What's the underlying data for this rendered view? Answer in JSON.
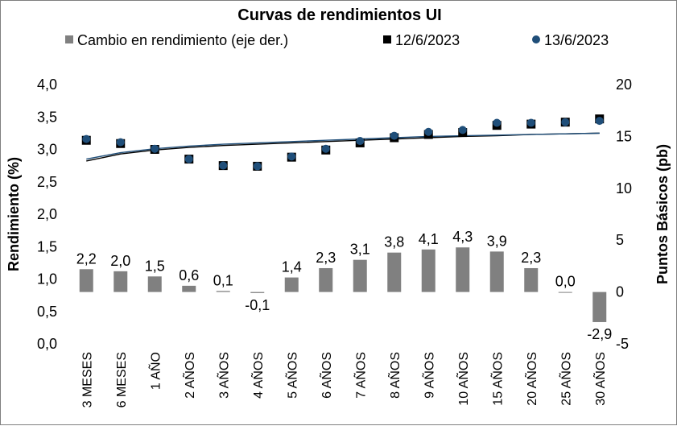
{
  "chart_data": {
    "type": "bar",
    "title": "Curvas de rendimientos UI",
    "ylabel": "Rendimiento (%)",
    "y2label": "Puntos Básicos (pb)",
    "ylim": [
      0,
      4
    ],
    "y2lim": [
      -5,
      20
    ],
    "yticks": [
      "0,0",
      "0,5",
      "1,0",
      "1,5",
      "2,0",
      "2,5",
      "3,0",
      "3,5",
      "4,0"
    ],
    "y2ticks": [
      "-5",
      "0",
      "5",
      "10",
      "15",
      "20"
    ],
    "legend_position": "top",
    "grid": false,
    "categories": [
      "3 MESES",
      "6 MESES",
      "1 AÑO",
      "2 AÑOS",
      "3 AÑOS",
      "4 AÑOS",
      "5 AÑOS",
      "6 AÑOS",
      "7 AÑOS",
      "8 AÑOS",
      "9 AÑOS",
      "10 AÑOS",
      "15 AÑOS",
      "20 AÑOS",
      "25 AÑOS",
      "30 AÑOS"
    ],
    "series": [
      {
        "name": "Cambio en rendimiento (eje der.)",
        "type": "bar",
        "axis": "right",
        "color": "#808080",
        "values": [
          2.2,
          2.0,
          1.5,
          0.6,
          0.1,
          -0.1,
          1.4,
          2.3,
          3.1,
          3.8,
          4.1,
          4.3,
          3.9,
          2.3,
          0.0,
          -2.9
        ],
        "labels": [
          "2,2",
          "2,0",
          "1,5",
          "0,6",
          "0,1",
          "-0,1",
          "1,4",
          "2,3",
          "3,1",
          "3,8",
          "4,1",
          "4,3",
          "3,9",
          "2,3",
          "0,0",
          "-2,9"
        ]
      },
      {
        "name": "12/6/2023",
        "type": "scatter",
        "axis": "left",
        "marker": "square",
        "color": "#000000",
        "values": [
          3.14,
          3.09,
          3.0,
          2.85,
          2.75,
          2.74,
          2.88,
          2.99,
          3.1,
          3.18,
          3.23,
          3.26,
          3.37,
          3.39,
          3.42,
          3.47
        ]
      },
      {
        "name": "13/6/2023",
        "type": "scatter",
        "axis": "left",
        "marker": "circle",
        "color": "#1f4e79",
        "values": [
          3.16,
          3.11,
          3.01,
          2.85,
          2.75,
          2.74,
          2.89,
          3.01,
          3.13,
          3.21,
          3.27,
          3.3,
          3.41,
          3.41,
          3.42,
          3.44
        ]
      },
      {
        "name": "",
        "type": "trend",
        "axis": "left",
        "color": "#000000",
        "values": [
          2.82,
          2.93,
          2.99,
          3.03,
          3.06,
          3.08,
          3.1,
          3.12,
          3.14,
          3.16,
          3.18,
          3.2,
          3.21,
          3.23,
          3.24,
          3.25
        ]
      },
      {
        "name": "",
        "type": "trend",
        "axis": "left",
        "color": "#1f4e79",
        "values": [
          2.85,
          2.95,
          3.01,
          3.05,
          3.08,
          3.1,
          3.12,
          3.14,
          3.16,
          3.18,
          3.2,
          3.21,
          3.22,
          3.23,
          3.24,
          3.25
        ]
      }
    ]
  }
}
